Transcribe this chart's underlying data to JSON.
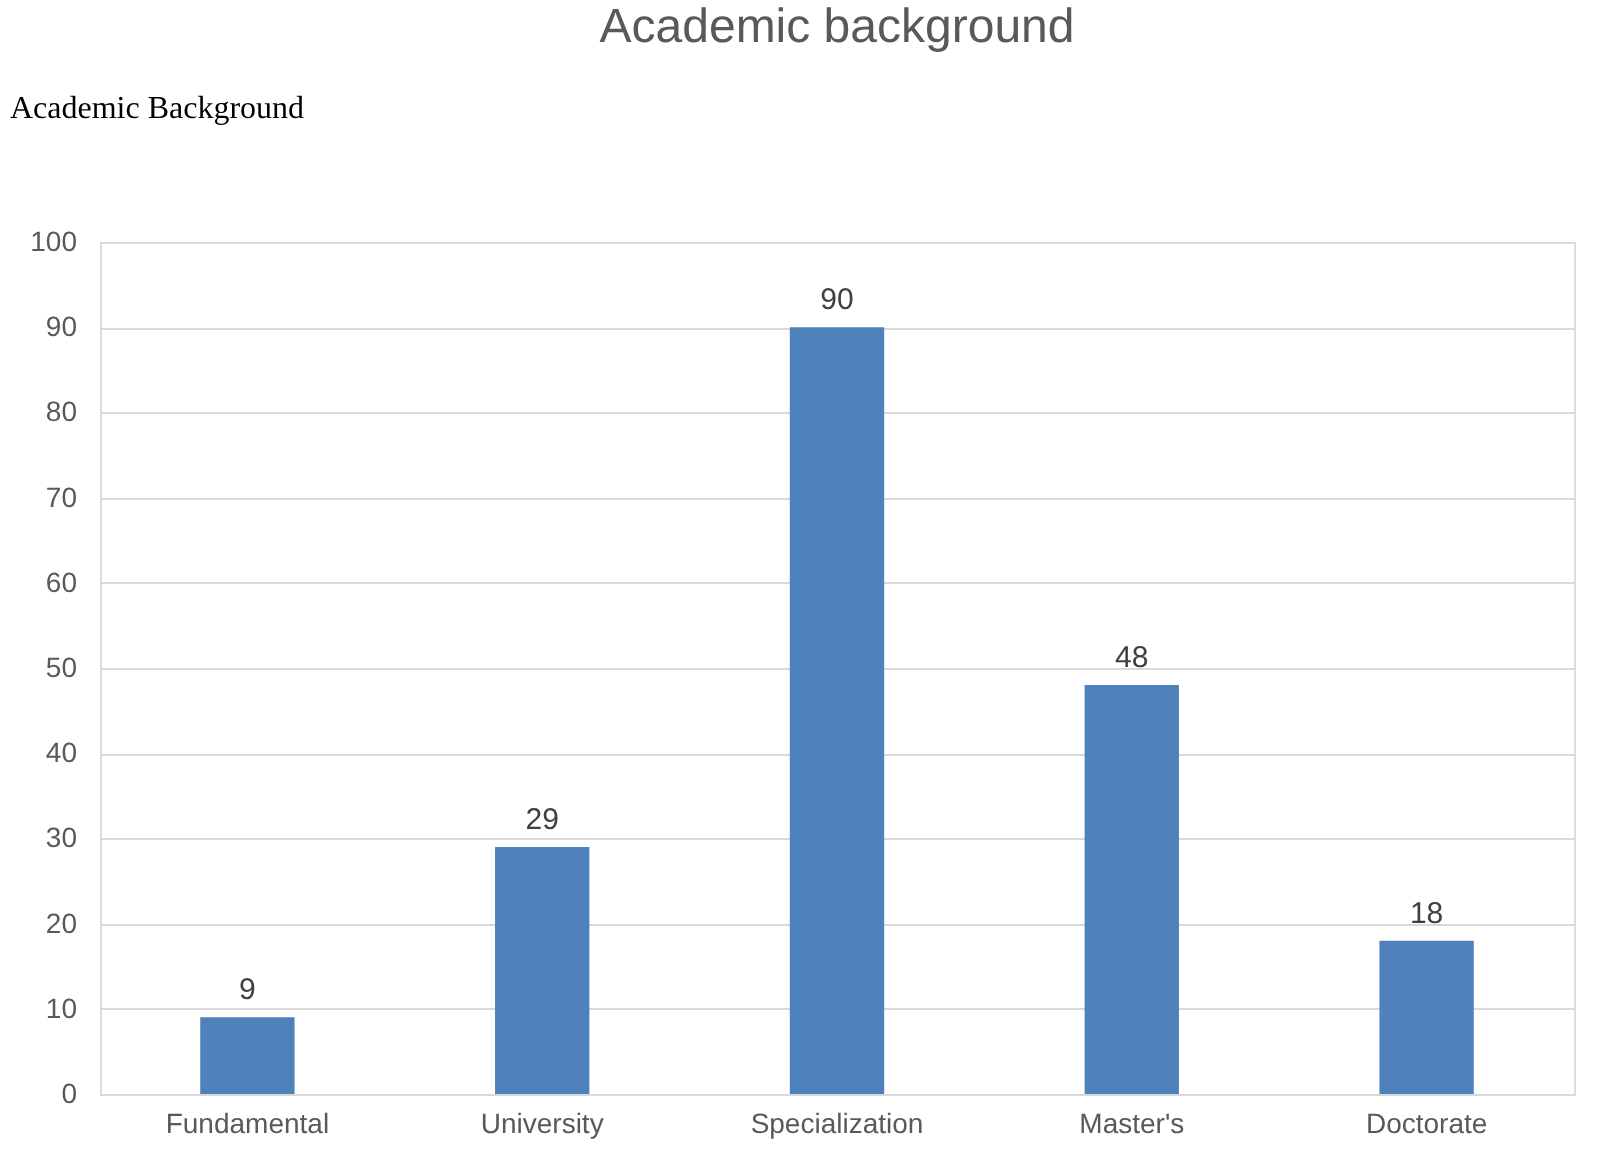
{
  "chart_data": {
    "type": "bar",
    "title": "Academic background",
    "annotations": [
      "Academic Background"
    ],
    "categories": [
      "Fundamental",
      "University",
      "Specialization",
      "Master's",
      "Doctorate"
    ],
    "values": [
      9,
      29,
      90,
      48,
      18
    ],
    "color": "#4f81bd",
    "ylim": [
      0,
      100
    ],
    "yticks": [
      0,
      10,
      20,
      30,
      40,
      50,
      60,
      70,
      80,
      90,
      100
    ],
    "grid": "y",
    "data_labels": true
  }
}
